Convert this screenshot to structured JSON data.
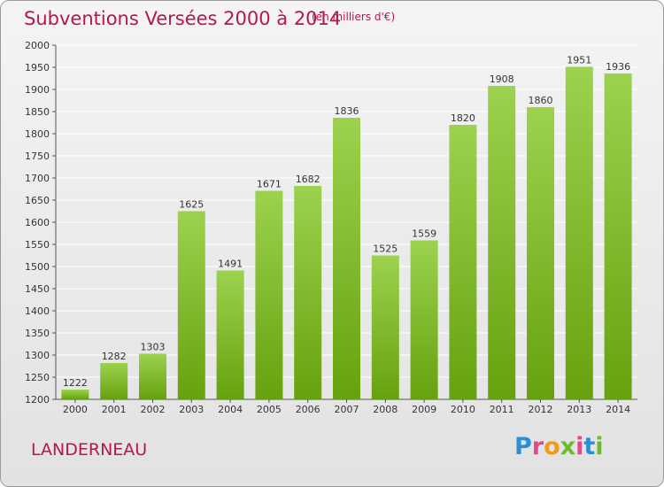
{
  "title": "Subventions Versées 2000 à 2014",
  "subtitle": "(en milliers d'€)",
  "commune": "LANDERNEAU",
  "logo": {
    "text": "Proxiti",
    "letter_colors": [
      "#2a8fd4",
      "#e24a8a",
      "#f29a1c",
      "#6dbb2a",
      "#e24a8a",
      "#2a8fd4",
      "#6dbb2a"
    ]
  },
  "colors": {
    "text_accent": "#b5174e",
    "bar_light": "#9cd24e",
    "bar_dark": "#66a20f",
    "grid": "#ffffff"
  },
  "chart_data": {
    "type": "bar",
    "title": "Subventions Versées 2000 à 2014",
    "subtitle": "(en milliers d'€)",
    "xlabel": "",
    "ylabel": "",
    "categories": [
      "2000",
      "2001",
      "2002",
      "2003",
      "2004",
      "2005",
      "2006",
      "2007",
      "2008",
      "2009",
      "2010",
      "2011",
      "2012",
      "2013",
      "2014"
    ],
    "values": [
      1222,
      1282,
      1303,
      1625,
      1491,
      1671,
      1682,
      1836,
      1525,
      1559,
      1820,
      1908,
      1860,
      1951,
      1936
    ],
    "ylim": [
      1200,
      2000
    ],
    "ytick_step": 50,
    "grid": true,
    "data_labels": true
  }
}
